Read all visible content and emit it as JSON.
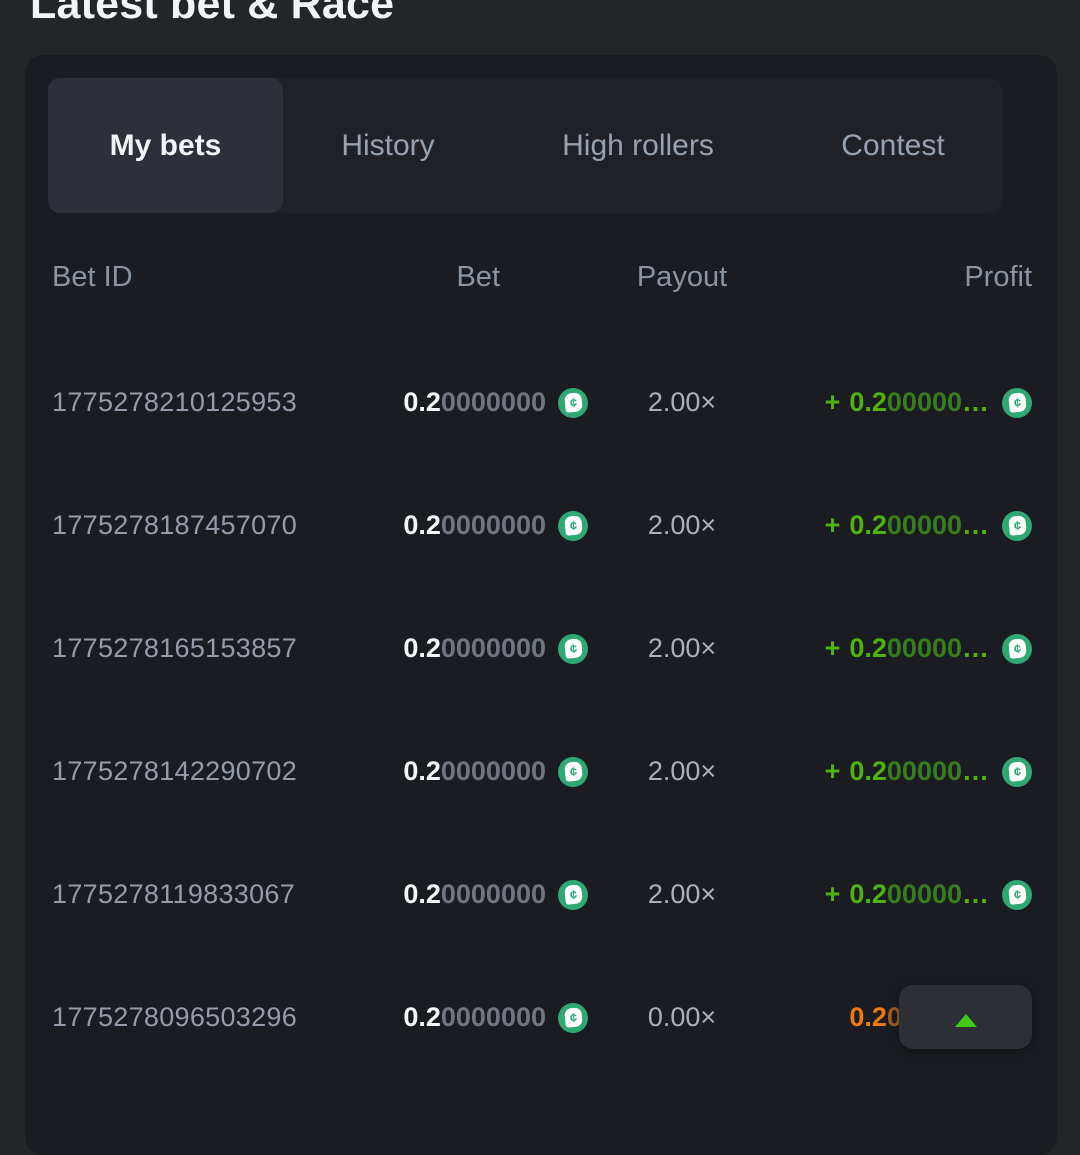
{
  "page": {
    "title": "Latest bet & Race"
  },
  "tabs": [
    {
      "label": "My bets",
      "active": true
    },
    {
      "label": "History",
      "active": false
    },
    {
      "label": "High rollers",
      "active": false
    },
    {
      "label": "Contest",
      "active": false
    }
  ],
  "table": {
    "headers": [
      "Bet ID",
      "Bet",
      "Payout",
      "Profit"
    ],
    "rows": [
      {
        "bet_id": "1775278210125953",
        "bet": {
          "main": "0.2",
          "rest": "0000000"
        },
        "payout": "2.00×",
        "profit": {
          "sign": "+",
          "main": "0.2",
          "rest": "00000",
          "ellipsis": "…"
        },
        "result": "win"
      },
      {
        "bet_id": "1775278187457070",
        "bet": {
          "main": "0.2",
          "rest": "0000000"
        },
        "payout": "2.00×",
        "profit": {
          "sign": "+",
          "main": "0.2",
          "rest": "00000",
          "ellipsis": "…"
        },
        "result": "win"
      },
      {
        "bet_id": "1775278165153857",
        "bet": {
          "main": "0.2",
          "rest": "0000000"
        },
        "payout": "2.00×",
        "profit": {
          "sign": "+",
          "main": "0.2",
          "rest": "00000",
          "ellipsis": "…"
        },
        "result": "win"
      },
      {
        "bet_id": "1775278142290702",
        "bet": {
          "main": "0.2",
          "rest": "0000000"
        },
        "payout": "2.00×",
        "profit": {
          "sign": "+",
          "main": "0.2",
          "rest": "00000",
          "ellipsis": "…"
        },
        "result": "win"
      },
      {
        "bet_id": "1775278119833067",
        "bet": {
          "main": "0.2",
          "rest": "0000000"
        },
        "payout": "2.00×",
        "profit": {
          "sign": "+",
          "main": "0.2",
          "rest": "00000",
          "ellipsis": "…"
        },
        "result": "win"
      },
      {
        "bet_id": "1775278096503296",
        "bet": {
          "main": "0.2",
          "rest": "0000000"
        },
        "payout": "0.00×",
        "profit": {
          "sign": "",
          "main": "0.2",
          "rest": "00000",
          "ellipsis": "…"
        },
        "result": "loss"
      }
    ]
  },
  "icons": {
    "coin": "bc-coin-icon",
    "coin_glyph": "¢",
    "scroll_arrow": "arrow-up-icon"
  },
  "colors": {
    "profit_green": "#4fb30e",
    "profit_green_dim": "#377c1d",
    "loss_orange": "#ef7a0c",
    "loss_orange_dim": "#9d5d20",
    "coin_green": "#2fa873",
    "card_bg": "#1a1c21",
    "page_bg": "#232529",
    "active_tab_bg": "#2d3038"
  }
}
